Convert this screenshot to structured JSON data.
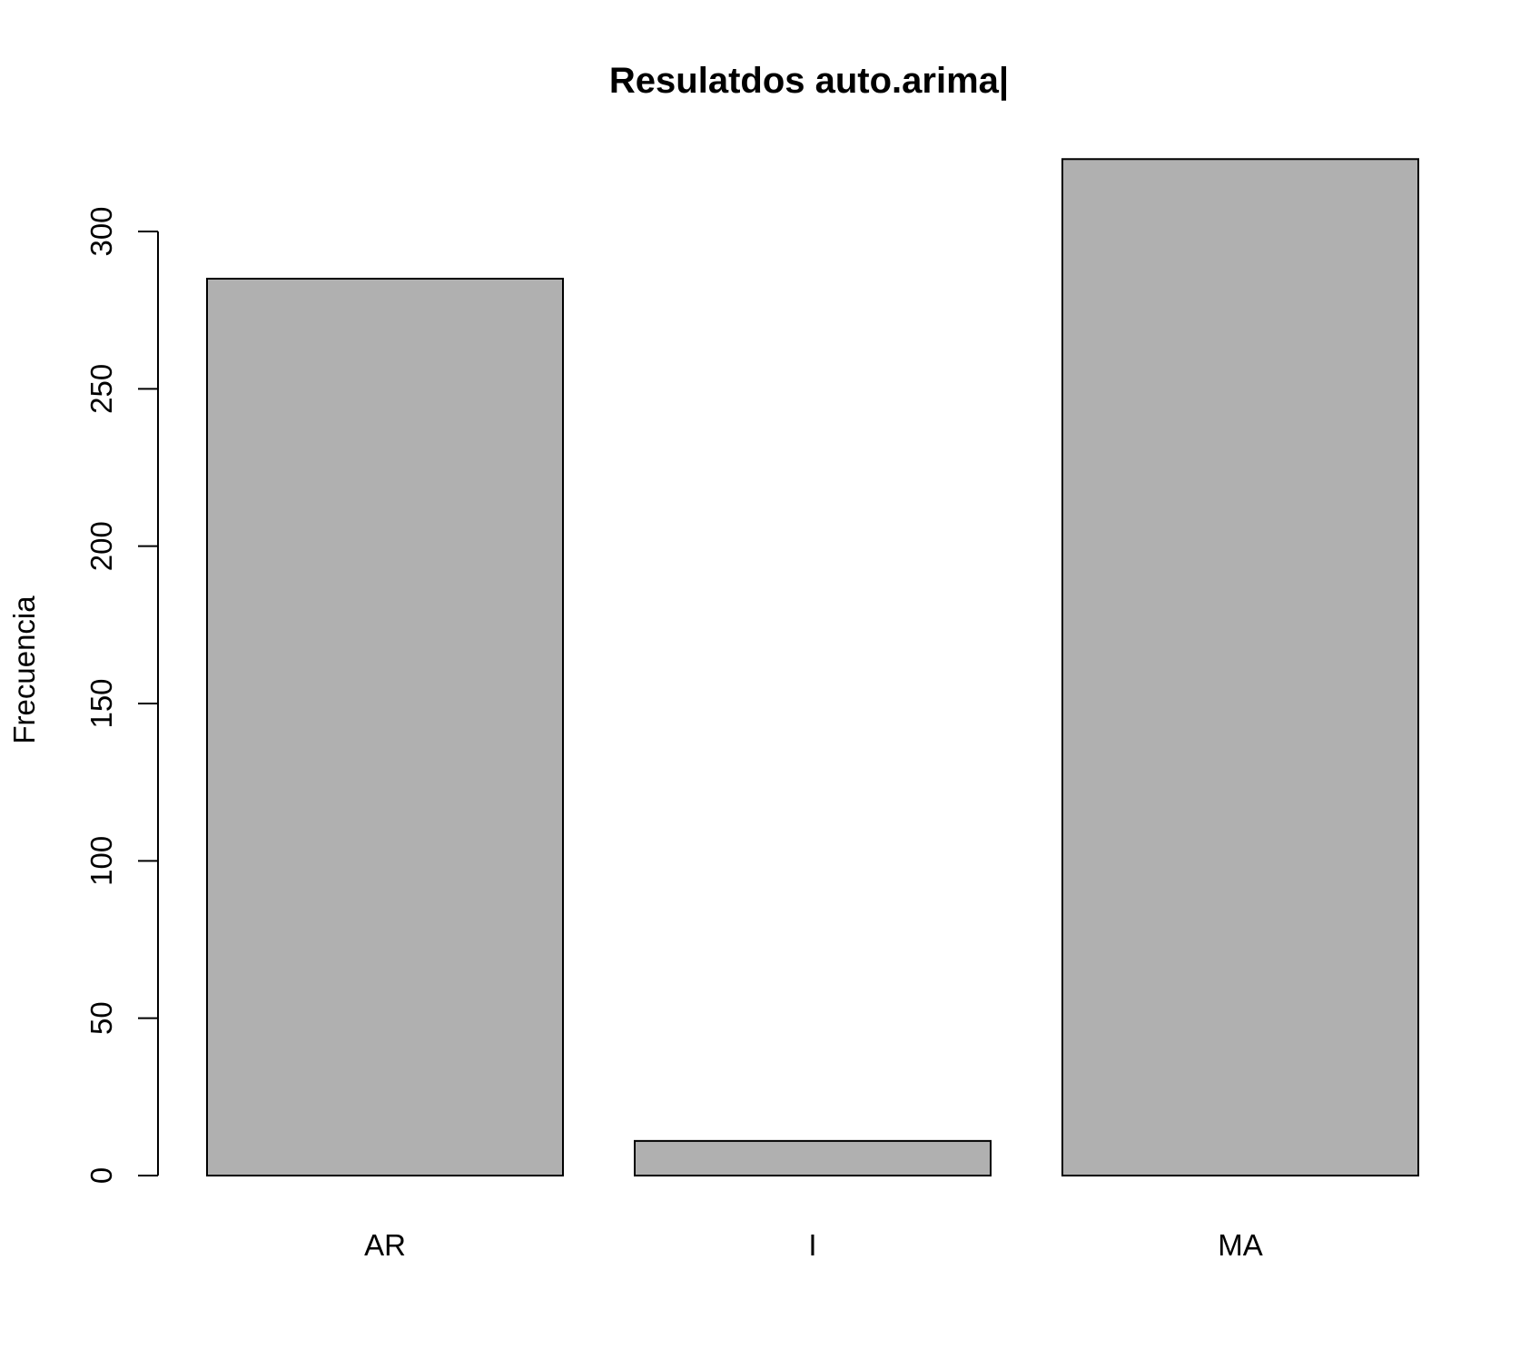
{
  "chart_data": {
    "type": "bar",
    "title": "Resulatdos auto.arima|",
    "xlabel": "",
    "ylabel": "Frecuencia",
    "categories": [
      "AR",
      "I",
      "MA"
    ],
    "values": [
      285,
      11,
      323
    ],
    "ylim": [
      0,
      300
    ],
    "yticks": [
      0,
      50,
      100,
      150,
      200,
      250,
      300
    ],
    "bar_color": "#b0b0b0",
    "bar_border_color": "#000000",
    "grid": false,
    "legend": "none"
  }
}
